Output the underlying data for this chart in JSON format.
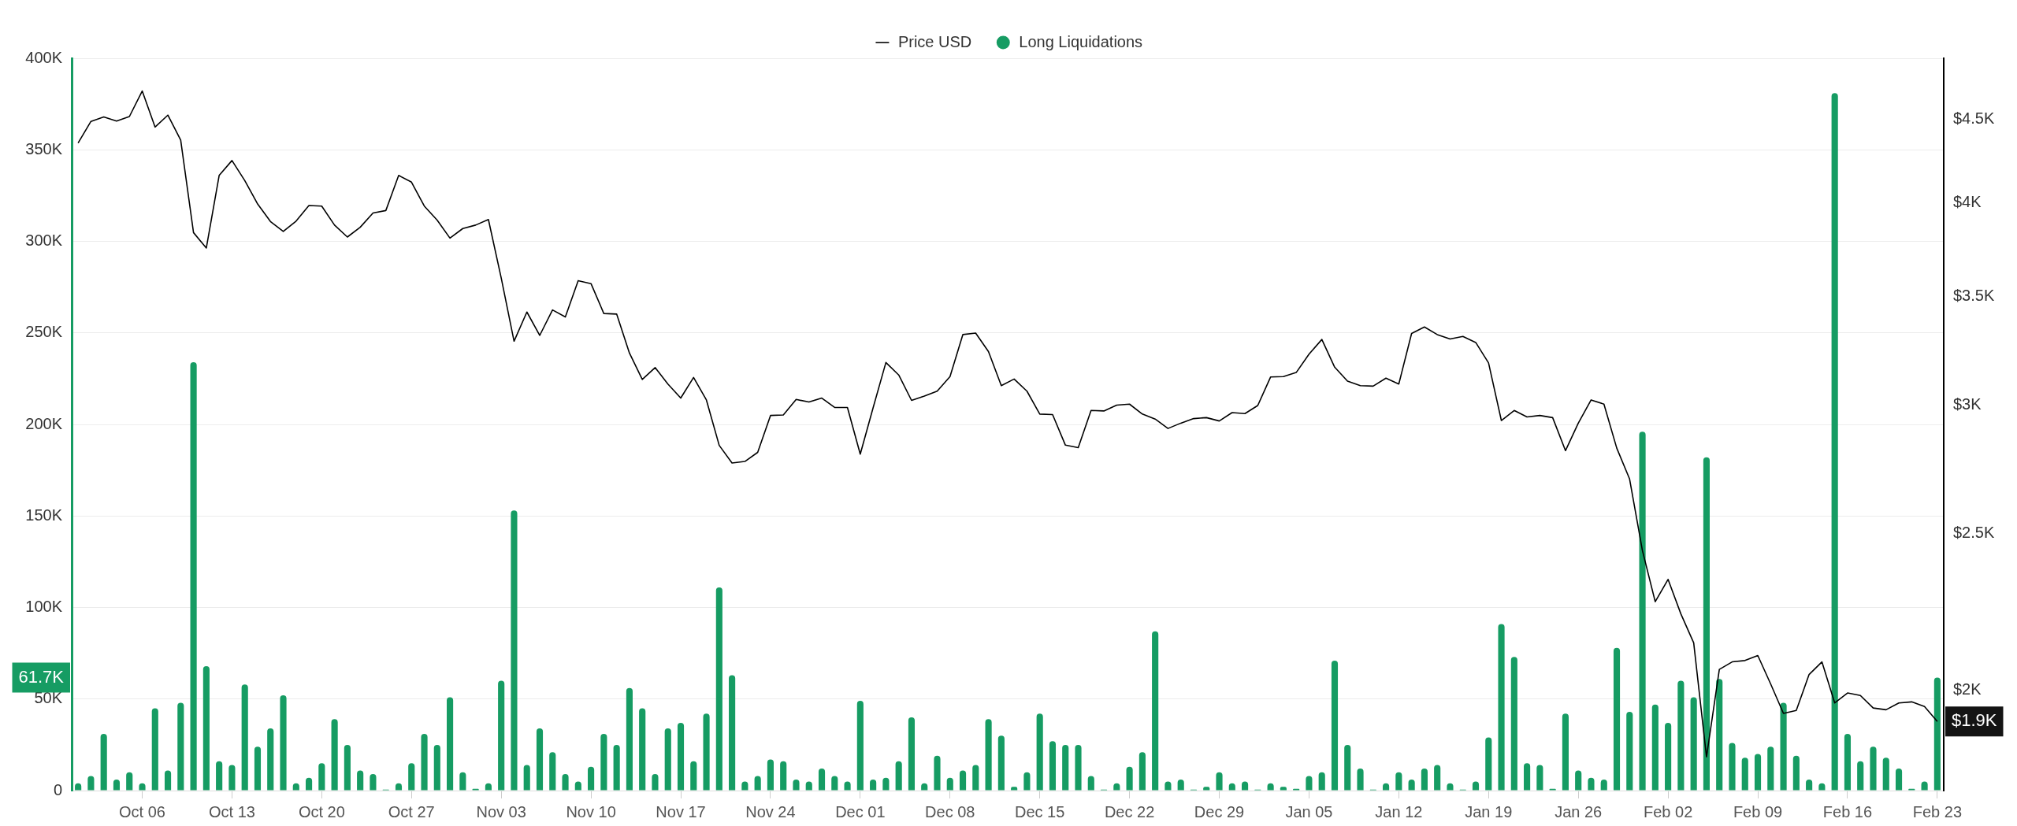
{
  "chart_data": {
    "type": "bar",
    "categories": [
      null,
      null,
      null,
      null,
      null,
      "Oct 06",
      null,
      null,
      null,
      null,
      null,
      null,
      "Oct 13",
      null,
      null,
      null,
      null,
      null,
      null,
      "Oct 20",
      null,
      null,
      null,
      null,
      null,
      null,
      "Oct 27",
      null,
      null,
      null,
      null,
      null,
      null,
      "Nov 03",
      null,
      null,
      null,
      null,
      null,
      null,
      "Nov 10",
      null,
      null,
      null,
      null,
      null,
      null,
      "Nov 17",
      null,
      null,
      null,
      null,
      null,
      null,
      "Nov 24",
      null,
      null,
      null,
      null,
      null,
      null,
      "Dec 01",
      null,
      null,
      null,
      null,
      null,
      null,
      "Dec 08",
      null,
      null,
      null,
      null,
      null,
      null,
      "Dec 15",
      null,
      null,
      null,
      null,
      null,
      null,
      "Dec 22",
      null,
      null,
      null,
      null,
      null,
      null,
      "Dec 29",
      null,
      null,
      null,
      null,
      null,
      null,
      "Jan 05",
      null,
      null,
      null,
      null,
      null,
      null,
      "Jan 12",
      null,
      null,
      null,
      null,
      null,
      null,
      "Jan 19",
      null,
      null,
      null,
      null,
      null,
      null,
      "Jan 26",
      null,
      null,
      null,
      null,
      null,
      null,
      "Feb 02",
      null,
      null,
      null,
      null,
      null,
      null,
      "Feb 09",
      null,
      null,
      null,
      null,
      null,
      null,
      "Feb 16",
      null,
      null,
      null,
      null,
      null,
      null,
      "Feb 23"
    ],
    "series": [
      {
        "name": "Price USD",
        "type": "line",
        "axis": "y2",
        "color": "#000000",
        "values": [
          4353,
          4489,
          4517,
          4491,
          4520,
          4687,
          4453,
          4529,
          4371,
          3833,
          3750,
          4157,
          4246,
          4127,
          3992,
          3894,
          3839,
          3896,
          3983,
          3980,
          3874,
          3809,
          3862,
          3941,
          3955,
          4157,
          4118,
          3980,
          3902,
          3803,
          3855,
          3874,
          3905,
          3593,
          3285,
          3424,
          3312,
          3434,
          3400,
          3580,
          3565,
          3417,
          3414,
          3230,
          3111,
          3164,
          3091,
          3030,
          3120,
          3022,
          2833,
          2763,
          2769,
          2805,
          2956,
          2958,
          3024,
          3013,
          3030,
          2990,
          2990,
          2798,
          2988,
          3187,
          3131,
          3020,
          3039,
          3060,
          3124,
          3316,
          3323,
          3237,
          3084,
          3113,
          3060,
          2962,
          2960,
          2834,
          2824,
          2977,
          2975,
          3000,
          3004,
          2962,
          2941,
          2902,
          2924,
          2943,
          2947,
          2933,
          2968,
          2964,
          2998,
          3122,
          3124,
          3142,
          3225,
          3293,
          3166,
          3104,
          3084,
          3082,
          3117,
          3091,
          3321,
          3352,
          3316,
          3295,
          3307,
          3279,
          3185,
          2935,
          2977,
          2950,
          2956,
          2947,
          2812,
          2924,
          3022,
          3004,
          2822,
          2701,
          2440,
          2269,
          2342,
          2230,
          2140,
          1820,
          2061,
          2083,
          2087,
          2102,
          2019,
          1936,
          1944,
          2046,
          2083,
          1965,
          1993,
          1986,
          1951,
          1946,
          1965,
          1968,
          1955,
          1914
        ]
      },
      {
        "name": "Long Liquidations",
        "color": "#169c63",
        "values": [
          4000,
          8000,
          31000,
          6000,
          10000,
          4000,
          45000,
          11000,
          48000,
          234000,
          68000,
          16000,
          14000,
          58000,
          24000,
          34000,
          52000,
          4000,
          7000,
          15000,
          39000,
          25000,
          11000,
          9000,
          500,
          4000,
          15000,
          31000,
          25000,
          51000,
          10000,
          1000,
          4000,
          60000,
          153000,
          14000,
          34000,
          21000,
          9000,
          5000,
          13000,
          31000,
          25000,
          56000,
          45000,
          9000,
          34000,
          37000,
          16000,
          42000,
          111000,
          63000,
          5000,
          8000,
          17000,
          16000,
          6000,
          5000,
          12000,
          8000,
          5000,
          49000,
          6000,
          7000,
          16000,
          40000,
          4000,
          19000,
          7000,
          11000,
          14000,
          39000,
          30000,
          2000,
          10000,
          42000,
          27000,
          25000,
          25000,
          8000,
          500,
          4000,
          13000,
          21000,
          87000,
          5000,
          6000,
          500,
          2000,
          10000,
          4000,
          5000,
          500,
          4000,
          2000,
          1000,
          8000,
          10000,
          71000,
          25000,
          12000,
          500,
          4000,
          10000,
          6000,
          12000,
          14000,
          4000,
          500,
          5000,
          29000,
          91000,
          73000,
          15000,
          14000,
          1000,
          42000,
          11000,
          7000,
          6000,
          78000,
          43000,
          196000,
          47000,
          37000,
          60000,
          51000,
          182000,
          61000,
          26000,
          18000,
          20000,
          24000,
          48000,
          19000,
          6000,
          4000,
          381000,
          31000,
          16000,
          24000,
          18000,
          12000,
          1000,
          5000,
          61700
        ]
      }
    ],
    "ylim": [
      0,
      400000
    ],
    "yticks": [
      {
        "value": 0,
        "label": "0"
      },
      {
        "value": 50000,
        "label": "50K"
      },
      {
        "value": 100000,
        "label": "100K"
      },
      {
        "value": 150000,
        "label": "150K"
      },
      {
        "value": 200000,
        "label": "200K"
      },
      {
        "value": 250000,
        "label": "250K"
      },
      {
        "value": 300000,
        "label": "300K"
      },
      {
        "value": 350000,
        "label": "350K"
      },
      {
        "value": 400000,
        "label": "400K"
      }
    ],
    "y2lim": [
      1735,
      4910
    ],
    "y2ticks": [
      {
        "value": 2000,
        "label": "$2K"
      },
      {
        "value": 2500,
        "label": "$2.5K"
      },
      {
        "value": 3000,
        "label": "$3K"
      },
      {
        "value": 3500,
        "label": "$3.5K"
      },
      {
        "value": 4000,
        "label": "$4K"
      },
      {
        "value": 4500,
        "label": "$4.5K"
      }
    ],
    "log": "y2",
    "grid": "y",
    "legend": "top",
    "marker": "none",
    "annotations": [
      "$1.9K",
      "61.7K"
    ]
  }
}
